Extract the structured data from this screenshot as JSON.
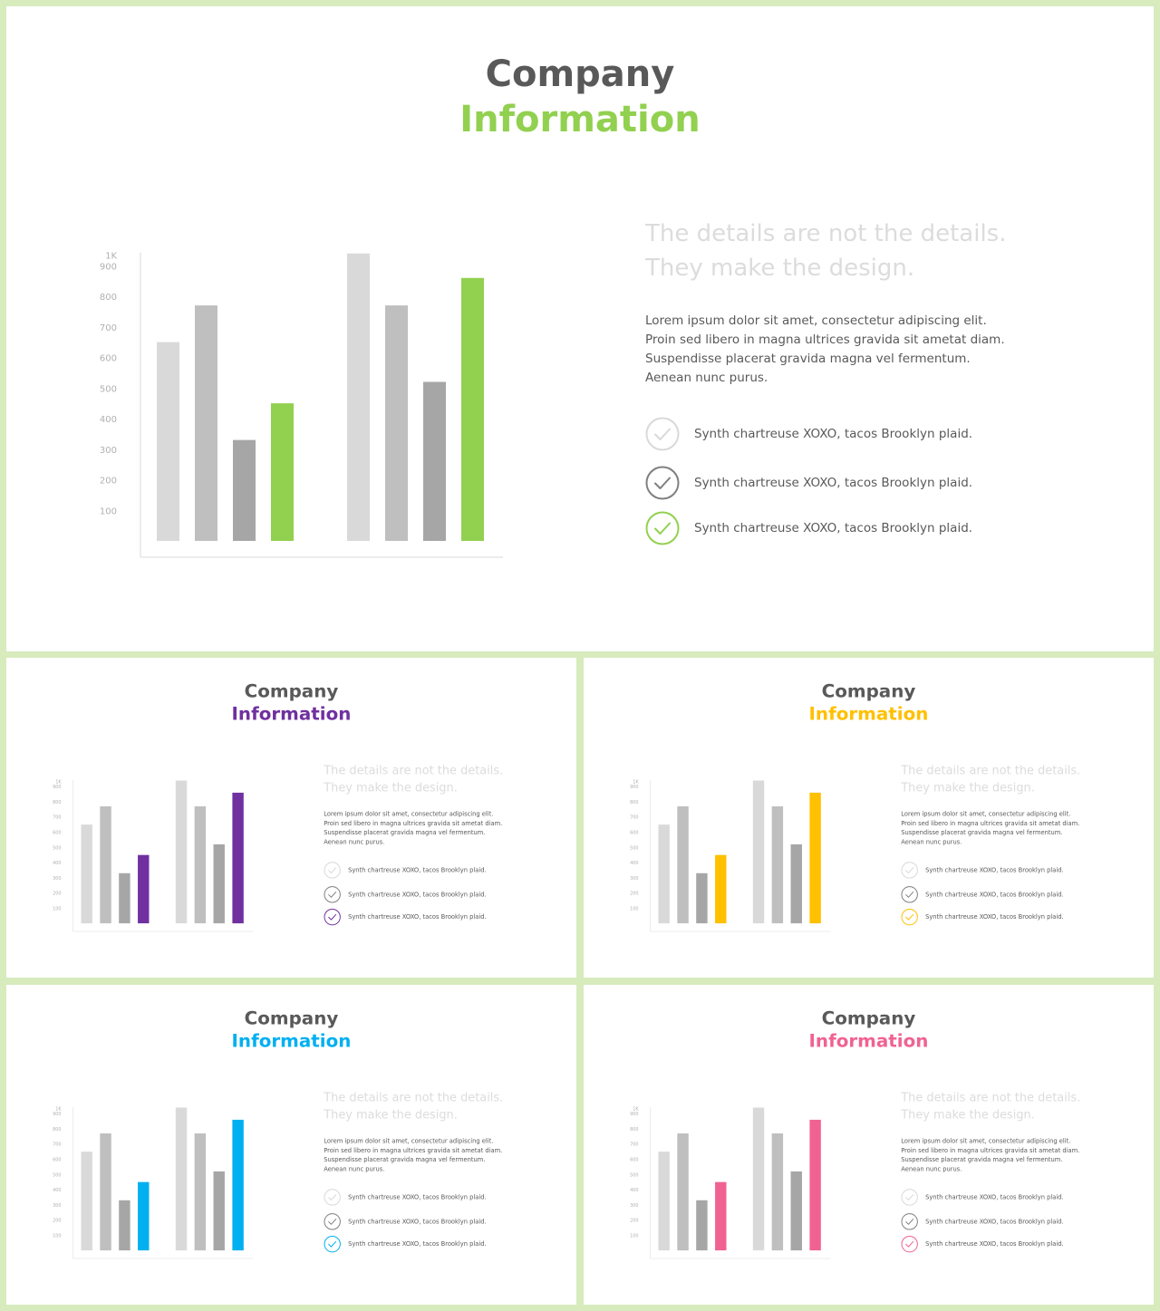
{
  "slides": [
    {
      "id": "main",
      "title_line1": "Company",
      "title_line2": "Information",
      "accent": "#92d050",
      "headline_line1": "The details are not the details.",
      "headline_line2": "They make the design.",
      "paragraph": "Lorem ipsum dolor sit amet, consectetur adipiscing elit. Proin sed libero in magna ultrices gravida sit ametat diam. Suspendisse placerat gravida magna vel fermentum. Aenean nunc purus.",
      "checklist": [
        "Synth chartreuse XOXO, tacos Brooklyn plaid.",
        "Synth chartreuse XOXO, tacos Brooklyn plaid.",
        "Synth chartreuse XOXO, tacos Brooklyn plaid."
      ]
    },
    {
      "id": "s1",
      "title_line1": "Company",
      "title_line2": "Information",
      "accent": "#7030a0",
      "headline_line1": "The details are not the details.",
      "headline_line2": "They make the design.",
      "paragraph": "Lorem ipsum dolor sit amet, consectetur adipiscing elit. Proin sed libero in magna ultrices gravida sit ametat diam. Suspendisse placerat gravida magna vel fermentum. Aenean nunc purus.",
      "checklist": [
        "Synth chartreuse XOXO, tacos Brooklyn plaid.",
        "Synth chartreuse XOXO, tacos Brooklyn plaid.",
        "Synth chartreuse XOXO, tacos Brooklyn plaid."
      ]
    },
    {
      "id": "s2",
      "title_line1": "Company",
      "title_line2": "Information",
      "accent": "#ffc000",
      "headline_line1": "The details are not the details.",
      "headline_line2": "They make the design.",
      "paragraph": "Lorem ipsum dolor sit amet, consectetur adipiscing elit. Proin sed libero in magna ultrices gravida sit ametat diam. Suspendisse placerat gravida magna vel fermentum. Aenean nunc purus.",
      "checklist": [
        "Synth chartreuse XOXO, tacos Brooklyn plaid.",
        "Synth chartreuse XOXO, tacos Brooklyn plaid.",
        "Synth chartreuse XOXO, tacos Brooklyn plaid."
      ]
    },
    {
      "id": "s3",
      "title_line1": "Company",
      "title_line2": "Information",
      "accent": "#00b0f0",
      "headline_line1": "The details are not the details.",
      "headline_line2": "They make the design.",
      "paragraph": "Lorem ipsum dolor sit amet, consectetur adipiscing elit. Proin sed libero in magna ultrices gravida sit ametat diam. Suspendisse placerat gravida magna vel fermentum. Aenean nunc purus.",
      "checklist": [
        "Synth chartreuse XOXO, tacos Brooklyn plaid.",
        "Synth chartreuse XOXO, tacos Brooklyn plaid.",
        "Synth chartreuse XOXO, tacos Brooklyn plaid."
      ]
    },
    {
      "id": "s4",
      "title_line1": "Company",
      "title_line2": "Information",
      "accent": "#f06292",
      "headline_line1": "The details are not the details.",
      "headline_line2": "They make the design.",
      "paragraph": "Lorem ipsum dolor sit amet, consectetur adipiscing elit. Proin sed libero in magna ultrices gravida sit ametat diam. Suspendisse placerat gravida magna vel fermentum. Aenean nunc purus.",
      "checklist": [
        "Synth chartreuse XOXO, tacos Brooklyn plaid.",
        "Synth chartreuse XOXO, tacos Brooklyn plaid.",
        "Synth chartreuse XOXO, tacos Brooklyn plaid."
      ]
    }
  ],
  "colors": {
    "page_background": "#d7ebbd",
    "bar_light": "#d9d9d9",
    "bar_mid": "#bfbfbf",
    "bar_dark": "#a6a6a6",
    "check_light": "#d9d9d9",
    "check_dark": "#7f7f7f",
    "title_dark": "#595959"
  },
  "chart_data": {
    "type": "bar",
    "ylim": [
      0,
      1000
    ],
    "ytick_labels": [
      "1K",
      "900",
      "800",
      "700",
      "600",
      "500",
      "400",
      "300",
      "200",
      "100"
    ],
    "ytick_values": [
      1000,
      900,
      800,
      700,
      600,
      500,
      400,
      300,
      200,
      100
    ],
    "groups": [
      {
        "values": [
          650,
          770,
          330,
          450
        ],
        "tones": [
          "light",
          "mid",
          "dark",
          "accent"
        ]
      },
      {
        "values": [
          940,
          770,
          520,
          860
        ],
        "tones": [
          "light",
          "mid",
          "dark",
          "accent"
        ]
      }
    ],
    "grid": false,
    "legend": "none"
  }
}
